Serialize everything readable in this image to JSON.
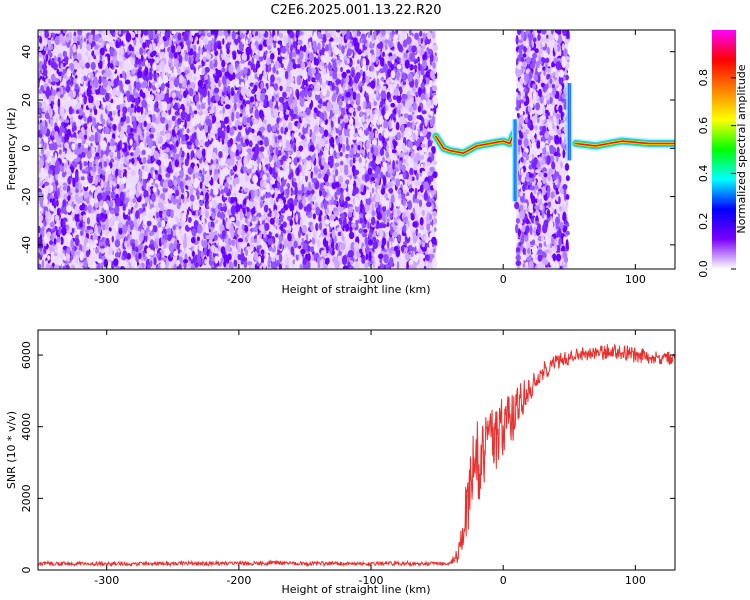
{
  "title": "C2E6.2025.001.13.22.R20",
  "chart_data": [
    {
      "type": "heatmap",
      "xlabel": "Height of straight line (km)",
      "ylabel": "Frequency (Hz)",
      "xlim": [
        -352,
        130
      ],
      "ylim": [
        -50,
        49
      ],
      "xticks": [
        -300,
        -200,
        -100,
        0,
        100
      ],
      "yticks": [
        -40,
        -20,
        0,
        20,
        40
      ],
      "colorbar": {
        "label": "Normalized spectral amplitude",
        "range": [
          0,
          1
        ],
        "ticks": [
          "0.0",
          "0.2",
          "0.4",
          "0.6",
          "0.8"
        ],
        "colors": [
          "#ffffff",
          "#7a00ff",
          "#0000ff",
          "#00ffff",
          "#00ff00",
          "#ffff00",
          "#ff8000",
          "#ff0000",
          "#ff00ff"
        ]
      },
      "noise_regions_km": [
        [
          -352,
          -51
        ],
        [
          10,
          49
        ]
      ],
      "clean_regions_km": [
        [
          -51,
          10
        ],
        [
          49,
          130
        ]
      ],
      "carrier_line": {
        "x": [
          -51,
          -45,
          -40,
          -30,
          -20,
          -10,
          0,
          5,
          8,
          55,
          70,
          90,
          110,
          130
        ],
        "y": [
          5,
          0,
          -1,
          -2,
          1,
          2,
          3,
          2,
          6,
          2,
          1,
          3,
          2,
          2
        ]
      },
      "spikes": [
        {
          "x": 9,
          "y_from": -22,
          "y_to": 12
        },
        {
          "x": 50,
          "y_from": -5,
          "y_to": 27
        }
      ]
    },
    {
      "type": "line",
      "xlabel": "Height of straight line (km)",
      "ylabel": "SNR (10 * v/v)",
      "xlim": [
        -352,
        130
      ],
      "ylim": [
        0,
        6700
      ],
      "xticks": [
        -300,
        -200,
        -100,
        0,
        100
      ],
      "yticks": [
        0,
        2000,
        4000,
        6000
      ],
      "series": [
        {
          "color": "#e8302e",
          "x": [
            -352,
            -300,
            -200,
            -100,
            -40,
            -35,
            -30,
            -25,
            -20,
            -15,
            -10,
            -5,
            0,
            5,
            10,
            15,
            20,
            25,
            30,
            40,
            50,
            60,
            70,
            80,
            90,
            100,
            110,
            120,
            130
          ],
          "y": [
            180,
            180,
            180,
            180,
            180,
            400,
            1200,
            2200,
            3000,
            3300,
            3600,
            3800,
            3900,
            4100,
            4400,
            4800,
            5100,
            5400,
            5600,
            5800,
            5950,
            6050,
            6050,
            6100,
            6100,
            6000,
            5950,
            5900,
            5900
          ],
          "spread": [
            60,
            60,
            60,
            60,
            60,
            250,
            700,
            1200,
            1300,
            1200,
            1100,
            1000,
            900,
            800,
            700,
            600,
            450,
            350,
            300,
            250,
            220,
            200,
            200,
            220,
            250,
            220,
            200,
            200,
            200
          ]
        }
      ]
    }
  ]
}
